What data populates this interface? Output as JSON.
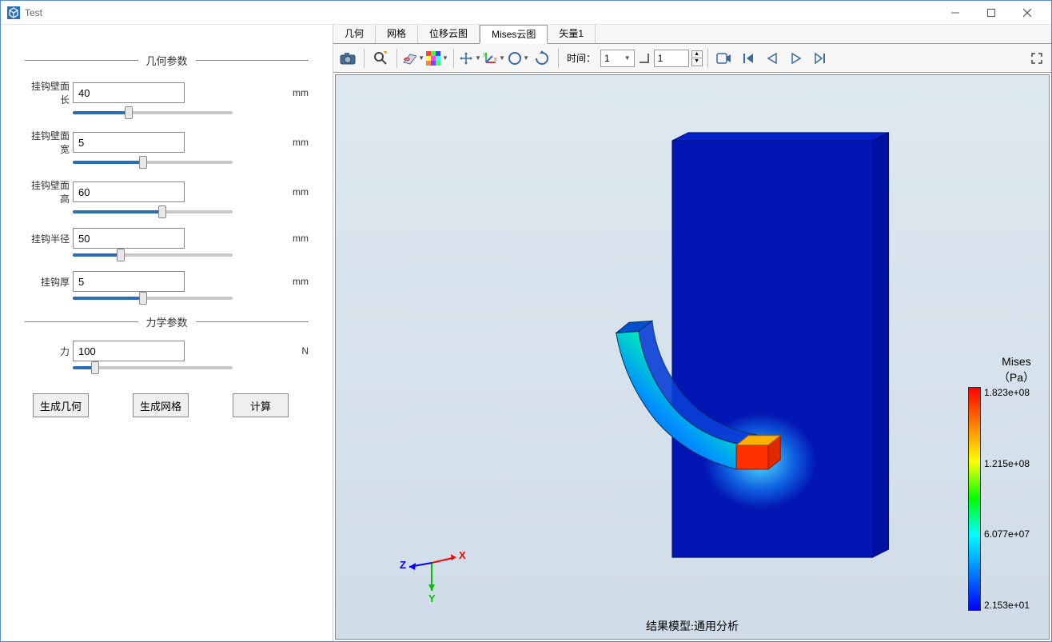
{
  "window": {
    "title": "Test"
  },
  "sidebar": {
    "section_geom": "几何参数",
    "section_mech": "力学参数",
    "params": [
      {
        "label": "挂钩壁面长",
        "value": "40",
        "unit": "mm",
        "slider_pct": 35
      },
      {
        "label": "挂钩壁面宽",
        "value": "5",
        "unit": "mm",
        "slider_pct": 44
      },
      {
        "label": "挂钩壁面高",
        "value": "60",
        "unit": "mm",
        "slider_pct": 56
      },
      {
        "label": "挂钩半径",
        "value": "50",
        "unit": "mm",
        "slider_pct": 30
      },
      {
        "label": "挂钩厚",
        "value": "5",
        "unit": "mm",
        "slider_pct": 44
      }
    ],
    "force": {
      "label": "力",
      "value": "100",
      "unit": "N",
      "slider_pct": 14
    },
    "btn_geom": "生成几何",
    "btn_mesh": "生成网格",
    "btn_calc": "计算"
  },
  "tabs": {
    "items": [
      "几何",
      "网格",
      "位移云图",
      "Mises云图",
      "矢量1"
    ],
    "active_index": 3
  },
  "toolbar": {
    "time_label": "时间：",
    "time_value": "1",
    "step_value": "1"
  },
  "viewport": {
    "bg_gradient_top": "#dde8f0",
    "bg_gradient_bottom": "#d0dce8",
    "result_label": "结果模型:通用分析",
    "colorbar": {
      "title": "Mises",
      "unit": "（Pa）",
      "max": "1.823e+08",
      "mid1": "1.215e+08",
      "mid2": "6.077e+07",
      "min": "2.153e+01",
      "gradient": [
        "#ff0000",
        "#ffff00",
        "#00ff00",
        "#00ffff",
        "#0000ff"
      ]
    },
    "axes": {
      "x_color": "#ff0000",
      "y_color": "#00c000",
      "z_color": "#0000ff",
      "x": "X",
      "y": "Y",
      "z": "Z"
    },
    "model": {
      "slab_color": "#0216b4",
      "slab_edge": "#001070",
      "hook_gradient": [
        "#0030c0",
        "#0090ff",
        "#00e0c0",
        "#80ff40",
        "#ffe000",
        "#ff6000",
        "#ff0000"
      ]
    }
  }
}
